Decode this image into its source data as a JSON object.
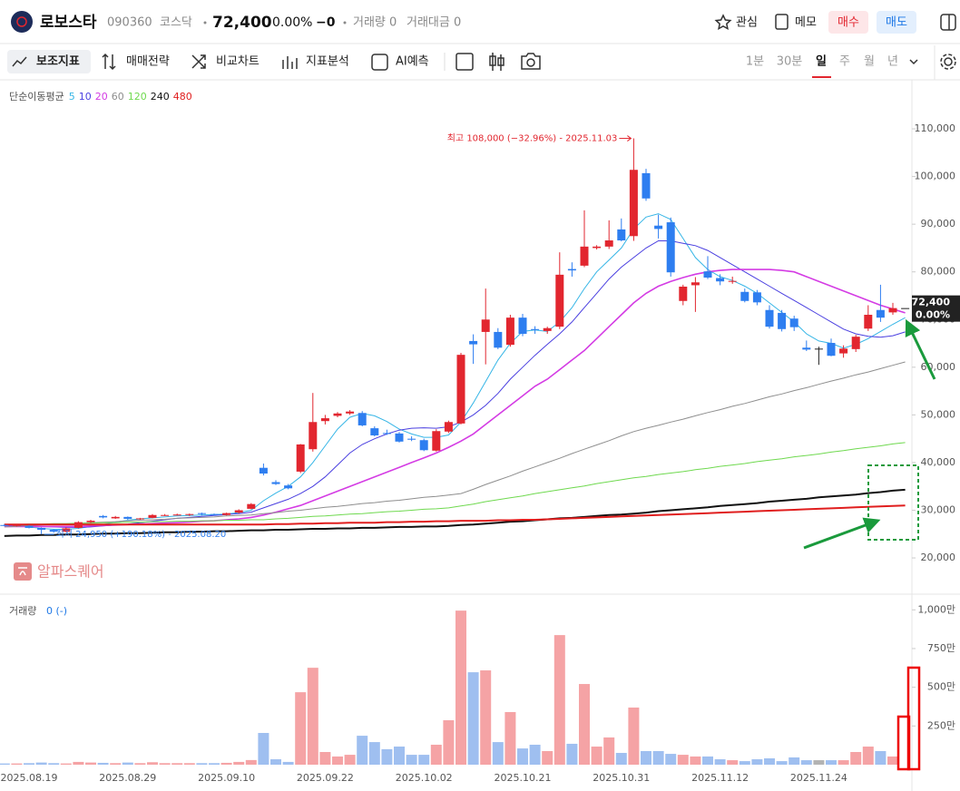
{
  "header": {
    "name": "로보스타",
    "code": "090360",
    "market": "코스닥",
    "price": "72,400",
    "change_rate": "0.00%",
    "change": "−0",
    "volume": "거래량 0",
    "trade_value": "거래대금 0",
    "actions": [
      "관심",
      "메모"
    ],
    "buy": "매수",
    "sell": "매도"
  },
  "toolbar": {
    "tools": [
      "보조지표",
      "매매전략",
      "비교차트",
      "지표분석",
      "AI예측"
    ],
    "periods": [
      "1분",
      "30분",
      "일",
      "주",
      "월",
      "년"
    ]
  },
  "chart_data": [
    {
      "type": "candlestick",
      "indicator_title": "단순이동평균",
      "watermark": "알파스퀘어",
      "up_color": "#e2262f",
      "down_color": "#2e7ef0",
      "flat_color": "#222222",
      "ylim": [
        12400,
        119900
      ],
      "yticks": [
        {
          "value": 20000,
          "label": "20,000"
        },
        {
          "value": 30000,
          "label": "30,000"
        },
        {
          "value": 40000,
          "label": "40,000"
        },
        {
          "value": 50000,
          "label": "50,000"
        },
        {
          "value": 60000,
          "label": "60,000"
        },
        {
          "value": 70000,
          "label": "70,000"
        },
        {
          "value": 80000,
          "label": "80,000"
        },
        {
          "value": 90000,
          "label": "90,000"
        },
        {
          "value": 100000,
          "label": "100,000"
        },
        {
          "value": 110000,
          "label": "110,000"
        }
      ],
      "annotations": [
        {
          "text": "최고 108,000 (−32.96%) - 2025.11.03"
        },
        {
          "text": "최저 24,950 (+190.18%) - 2025.08.20"
        }
      ],
      "open": [
        26900,
        26800,
        26700,
        26300,
        25900,
        25500,
        26300,
        27500,
        28800,
        28300,
        28600,
        28200,
        28400,
        28900,
        29000,
        29100,
        29400,
        29200,
        29000,
        29500,
        30300,
        38900,
        35900,
        35200,
        38100,
        42800,
        48700,
        49800,
        50300,
        50400,
        47200,
        46200,
        46100,
        45000,
        44700,
        42500,
        46500,
        48200,
        65500,
        67400,
        67400,
        64700,
        70400,
        68000,
        67600,
        68500,
        80600,
        81300,
        85000,
        85300,
        88900,
        87500,
        100700,
        89700,
        90400,
        73900,
        77200,
        80100,
        78700,
        78000,
        75800,
        75700,
        72000,
        71400,
        70200,
        64100,
        63900,
        65100,
        62900,
        63800,
        68100,
        72000,
        71500,
        72400
      ],
      "high": [
        27100,
        27000,
        26900,
        26400,
        26000,
        26400,
        27700,
        28000,
        29000,
        28800,
        28700,
        28400,
        29200,
        29200,
        29300,
        29300,
        29500,
        29300,
        29500,
        30200,
        31500,
        39800,
        36300,
        35500,
        43900,
        54600,
        50000,
        50600,
        51000,
        50800,
        47600,
        46900,
        46400,
        45500,
        45000,
        47000,
        48800,
        63000,
        66900,
        76500,
        68200,
        71000,
        71200,
        68600,
        68500,
        84100,
        82000,
        92900,
        85600,
        90800,
        91200,
        108000,
        101600,
        92000,
        91400,
        77300,
        78900,
        83300,
        79500,
        79000,
        76500,
        76200,
        73000,
        72000,
        70800,
        65600,
        64300,
        66000,
        64600,
        66800,
        73000,
        77300,
        73500,
        72400
      ],
      "low": [
        26700,
        26600,
        26200,
        24950,
        25300,
        25400,
        26200,
        27300,
        28300,
        28200,
        28000,
        28000,
        28300,
        28800,
        28900,
        28800,
        28900,
        28900,
        28900,
        29300,
        30200,
        37300,
        35300,
        34400,
        37800,
        42300,
        48000,
        49500,
        50000,
        47600,
        45500,
        45800,
        44200,
        44500,
        42400,
        42300,
        46200,
        48000,
        60700,
        60600,
        63800,
        64300,
        66500,
        67000,
        67000,
        68000,
        79000,
        81000,
        84700,
        84800,
        86400,
        86500,
        94900,
        87000,
        79000,
        73000,
        71600,
        78500,
        77200,
        77500,
        73600,
        73000,
        68100,
        67500,
        67600,
        63400,
        60500,
        62300,
        62000,
        63200,
        67600,
        69500,
        71000,
        72400
      ],
      "close": [
        26800,
        26900,
        26300,
        25900,
        25500,
        26200,
        27500,
        27800,
        28500,
        28600,
        28200,
        28300,
        29000,
        29000,
        29100,
        29200,
        29200,
        29000,
        29400,
        30000,
        31300,
        37700,
        35500,
        34600,
        43800,
        48500,
        49300,
        50300,
        50700,
        47800,
        45700,
        46000,
        44400,
        44800,
        42600,
        46600,
        48500,
        62600,
        64800,
        70000,
        64100,
        70400,
        67000,
        67800,
        68200,
        79400,
        80300,
        85300,
        85300,
        86600,
        86600,
        101400,
        95400,
        89000,
        79900,
        76900,
        77800,
        78800,
        78000,
        78100,
        73900,
        73600,
        68500,
        68000,
        68400,
        63700,
        63900,
        62400,
        63900,
        66400,
        71000,
        70400,
        72400,
        72400
      ],
      "series": [
        {
          "name": "5",
          "color": "#35b5e6",
          "line_width": 1,
          "values": [
            26800,
            26700,
            26500,
            26200,
            26000,
            26000,
            26200,
            26600,
            27000,
            27500,
            27900,
            28200,
            28400,
            28600,
            28800,
            28900,
            29000,
            29100,
            29200,
            29500,
            30000,
            32000,
            33600,
            35000,
            37000,
            40000,
            43500,
            47000,
            49500,
            50300,
            49800,
            48600,
            47000,
            46000,
            45300,
            45300,
            45800,
            48500,
            52500,
            57000,
            61500,
            65000,
            67500,
            67800,
            67500,
            69500,
            72500,
            76500,
            80000,
            82500,
            85000,
            89000,
            91500,
            92200,
            91000,
            87000,
            83000,
            80500,
            79000,
            78200,
            77000,
            75500,
            73500,
            71500,
            69500,
            67000,
            65500,
            65000,
            64000,
            64800,
            66000,
            67500,
            69000,
            70400
          ]
        },
        {
          "name": "10",
          "color": "#4a3fe0",
          "line_width": 1,
          "values": [
            26800,
            26800,
            26700,
            26600,
            26500,
            26400,
            26400,
            26500,
            26700,
            26900,
            27100,
            27400,
            27700,
            28000,
            28300,
            28500,
            28700,
            28900,
            29100,
            29300,
            29600,
            30500,
            31400,
            32300,
            33500,
            35000,
            37000,
            39500,
            42000,
            43800,
            45000,
            46000,
            46800,
            47200,
            47300,
            47200,
            47500,
            48500,
            50000,
            52000,
            54500,
            57500,
            60000,
            62500,
            64800,
            67000,
            69500,
            72500,
            75500,
            78500,
            81000,
            83000,
            85000,
            86500,
            86500,
            86000,
            85500,
            84500,
            83000,
            81500,
            80000,
            78500,
            77000,
            75500,
            74000,
            72500,
            71000,
            69500,
            68000,
            67000,
            66500,
            66300,
            66600,
            67400
          ]
        },
        {
          "name": "20",
          "color": "#d43ce4",
          "line_width": 1.6,
          "values": [
            26600,
            26600,
            26600,
            26600,
            26600,
            26600,
            26600,
            26700,
            26800,
            26900,
            27000,
            27100,
            27200,
            27300,
            27400,
            27500,
            27700,
            27800,
            28000,
            28200,
            28500,
            29000,
            29600,
            30300,
            31000,
            32000,
            33000,
            34000,
            35000,
            36000,
            37000,
            38000,
            39000,
            40000,
            41000,
            42000,
            43200,
            44500,
            46000,
            48000,
            50000,
            52000,
            54000,
            56000,
            57500,
            59500,
            61500,
            63500,
            66000,
            68500,
            71000,
            73500,
            75500,
            77000,
            78000,
            78800,
            79500,
            80000,
            80300,
            80500,
            80500,
            80500,
            80500,
            80300,
            80000,
            79000,
            78000,
            77000,
            76000,
            75000,
            74000,
            73000,
            72200,
            71400
          ]
        },
        {
          "name": "60",
          "color": "#8e8e8e",
          "line_width": 1,
          "values": [
            26500,
            26600,
            26800,
            26900,
            27000,
            27100,
            27300,
            27400,
            27500,
            27600,
            27800,
            27900,
            28000,
            28100,
            28300,
            28400,
            28500,
            28600,
            28800,
            28900,
            29000,
            29300,
            29500,
            29800,
            30000,
            30300,
            30600,
            30800,
            31100,
            31400,
            31600,
            31900,
            32100,
            32400,
            32700,
            32900,
            33200,
            33500,
            34400,
            35400,
            36300,
            37200,
            38200,
            39100,
            40000,
            40900,
            41900,
            42800,
            43700,
            44600,
            45600,
            46500,
            47200,
            47800,
            48500,
            49100,
            49800,
            50500,
            51100,
            51800,
            52400,
            53100,
            53800,
            54400,
            55100,
            55700,
            56400,
            57100,
            57700,
            58400,
            59000,
            59700,
            60400,
            61100
          ]
        },
        {
          "name": "120",
          "color": "#6fd94f",
          "line_width": 1,
          "values": [
            27000,
            27000,
            27100,
            27100,
            27200,
            27200,
            27300,
            27300,
            27400,
            27400,
            27500,
            27500,
            27600,
            27600,
            27700,
            27700,
            27800,
            27800,
            27900,
            27900,
            28000,
            28000,
            28200,
            28300,
            28500,
            28700,
            28800,
            29000,
            29200,
            29300,
            29500,
            29700,
            29800,
            30000,
            30200,
            30300,
            30500,
            30900,
            31300,
            31800,
            32200,
            32600,
            33000,
            33500,
            33900,
            34300,
            34700,
            35100,
            35600,
            36000,
            36400,
            36800,
            37100,
            37500,
            37800,
            38100,
            38500,
            38800,
            39200,
            39500,
            39800,
            40200,
            40500,
            40800,
            41200,
            41500,
            41800,
            42200,
            42500,
            42900,
            43200,
            43500,
            43900,
            44200
          ]
        },
        {
          "name": "240",
          "color": "#111111",
          "line_width": 2,
          "values": [
            24600,
            24700,
            24700,
            24800,
            24800,
            24900,
            24900,
            25000,
            25100,
            25100,
            25200,
            25200,
            25300,
            25400,
            25400,
            25500,
            25500,
            25600,
            25600,
            25700,
            25800,
            25800,
            25900,
            25900,
            26000,
            26100,
            26100,
            26200,
            26200,
            26300,
            26300,
            26400,
            26500,
            26500,
            26600,
            26600,
            26700,
            26900,
            27000,
            27200,
            27400,
            27600,
            27700,
            27900,
            28100,
            28300,
            28400,
            28600,
            28800,
            29000,
            29100,
            29300,
            29500,
            29800,
            30000,
            30200,
            30400,
            30600,
            30900,
            31100,
            31300,
            31500,
            31800,
            32000,
            32200,
            32400,
            32700,
            32900,
            33100,
            33300,
            33600,
            33800,
            34100,
            34300
          ]
        },
        {
          "name": "480",
          "color": "#e01e1e",
          "line_width": 2,
          "values": [
            27000,
            27000,
            27000,
            27000,
            27000,
            27000,
            27000,
            27000,
            27000,
            27000,
            27000,
            27000,
            27000,
            27000,
            27000,
            27000,
            27000,
            27000,
            27000,
            27000,
            27000,
            27000,
            27100,
            27100,
            27200,
            27200,
            27300,
            27300,
            27400,
            27400,
            27400,
            27500,
            27500,
            27600,
            27600,
            27700,
            27700,
            27800,
            27800,
            27800,
            27900,
            27900,
            28000,
            28000,
            28100,
            28200,
            28300,
            28400,
            28500,
            28600,
            28700,
            28800,
            28900,
            29000,
            29100,
            29200,
            29300,
            29400,
            29500,
            29600,
            29700,
            29800,
            29900,
            30000,
            30100,
            30200,
            30300,
            30400,
            30500,
            30600,
            30700,
            30800,
            30900,
            31000
          ]
        }
      ]
    },
    {
      "type": "bar",
      "title": "거래량",
      "value_text": "0 (-)",
      "up_color": "#f5a3a5",
      "down_color": "#9fbff0",
      "flat_color": "#b3b3b3",
      "ylim": [
        0,
        1072
      ],
      "yticks": [
        {
          "value": 250,
          "label": "250만"
        },
        {
          "value": 500,
          "label": "500만"
        },
        {
          "value": 750,
          "label": "750만"
        },
        {
          "value": 1000,
          "label": "1,000만"
        }
      ],
      "categories": [
        null,
        null,
        "2025.08.19",
        null,
        null,
        null,
        null,
        null,
        null,
        null,
        "2025.08.29",
        null,
        null,
        null,
        null,
        null,
        null,
        null,
        "2025.09.10",
        null,
        null,
        null,
        null,
        null,
        null,
        null,
        "2025.09.22",
        null,
        null,
        null,
        null,
        null,
        null,
        null,
        "2025.10.02",
        null,
        null,
        null,
        null,
        null,
        null,
        null,
        "2025.10.21",
        null,
        null,
        null,
        null,
        null,
        null,
        null,
        "2025.10.31",
        null,
        null,
        null,
        null,
        null,
        null,
        null,
        "2025.11.12",
        null,
        null,
        null,
        null,
        null,
        null,
        null,
        "2025.11.24",
        null,
        null,
        null,
        null,
        null,
        null,
        null
      ],
      "values": [
        8,
        8,
        10,
        14,
        10,
        8,
        18,
        14,
        12,
        10,
        14,
        10,
        16,
        10,
        10,
        10,
        10,
        10,
        12,
        18,
        30,
        205,
        35,
        18,
        468,
        626,
        82,
        53,
        64,
        187,
        146,
        100,
        117,
        64,
        64,
        129,
        287,
        995,
        597,
        609,
        146,
        340,
        105,
        129,
        88,
        837,
        135,
        521,
        117,
        176,
        76,
        369,
        88,
        88,
        70,
        64,
        53,
        53,
        35,
        29,
        23,
        35,
        41,
        23,
        47,
        29,
        29,
        29,
        29,
        82,
        117,
        88,
        53,
        0
      ]
    }
  ]
}
